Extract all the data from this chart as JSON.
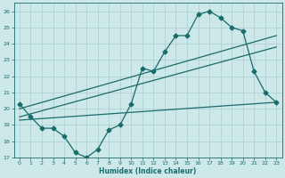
{
  "xlabel": "Humidex (Indice chaleur)",
  "bg_color": "#cce8e8",
  "line_color": "#1a6b6b",
  "grid_color": "#aacece",
  "xlim": [
    -0.5,
    23.5
  ],
  "ylim": [
    17,
    26.5
  ],
  "xticks": [
    0,
    1,
    2,
    3,
    4,
    5,
    6,
    7,
    8,
    9,
    10,
    11,
    12,
    13,
    14,
    15,
    16,
    17,
    18,
    19,
    20,
    21,
    22,
    23
  ],
  "yticks": [
    17,
    18,
    19,
    20,
    21,
    22,
    23,
    24,
    25,
    26
  ],
  "curve1_x": [
    0,
    1,
    2,
    3,
    4,
    5,
    6,
    7,
    8,
    9,
    10,
    11,
    12,
    13,
    14,
    15,
    16,
    17,
    18,
    19,
    20,
    21,
    22,
    23
  ],
  "curve1_y": [
    20.3,
    19.5,
    18.8,
    18.8,
    18.3,
    17.3,
    17.0,
    17.5,
    18.7,
    19.0,
    20.3,
    22.5,
    22.3,
    23.5,
    24.5,
    24.5,
    25.8,
    26.0,
    25.6,
    25.0,
    24.8,
    22.3,
    21.0,
    20.4
  ],
  "curve2_x": [
    0,
    23
  ],
  "curve2_y": [
    20.0,
    24.5
  ],
  "curve3_x": [
    0,
    23
  ],
  "curve3_y": [
    19.5,
    23.8
  ],
  "curve4_x": [
    0,
    23
  ],
  "curve4_y": [
    19.3,
    20.4
  ],
  "marker_size": 2.5,
  "linewidth": 0.9
}
